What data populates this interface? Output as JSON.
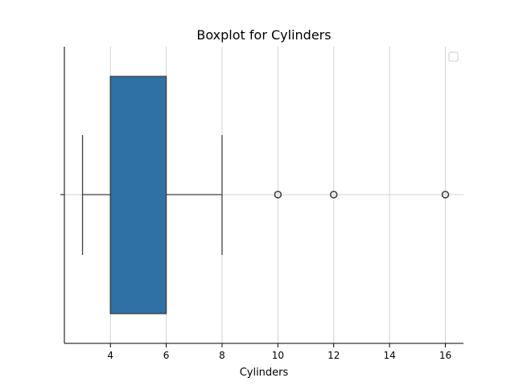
{
  "chart_data": {
    "type": "boxplot",
    "orientation": "horizontal",
    "title": "Boxplot for Cylinders",
    "xlabel": "Cylinders",
    "ylabel": "",
    "xlim": [
      2.35,
      16.65
    ],
    "xticks": [
      4,
      6,
      8,
      10,
      12,
      14,
      16
    ],
    "grid": true,
    "legend": {
      "placement": "top-right",
      "entries": []
    },
    "box": {
      "whisker_low": 3,
      "q1": 4,
      "median": 4,
      "q3": 6,
      "whisker_high": 8,
      "fliers": [
        10,
        12,
        16
      ],
      "color": "#2f70a5",
      "edge_color": "#3f3f3f"
    }
  }
}
